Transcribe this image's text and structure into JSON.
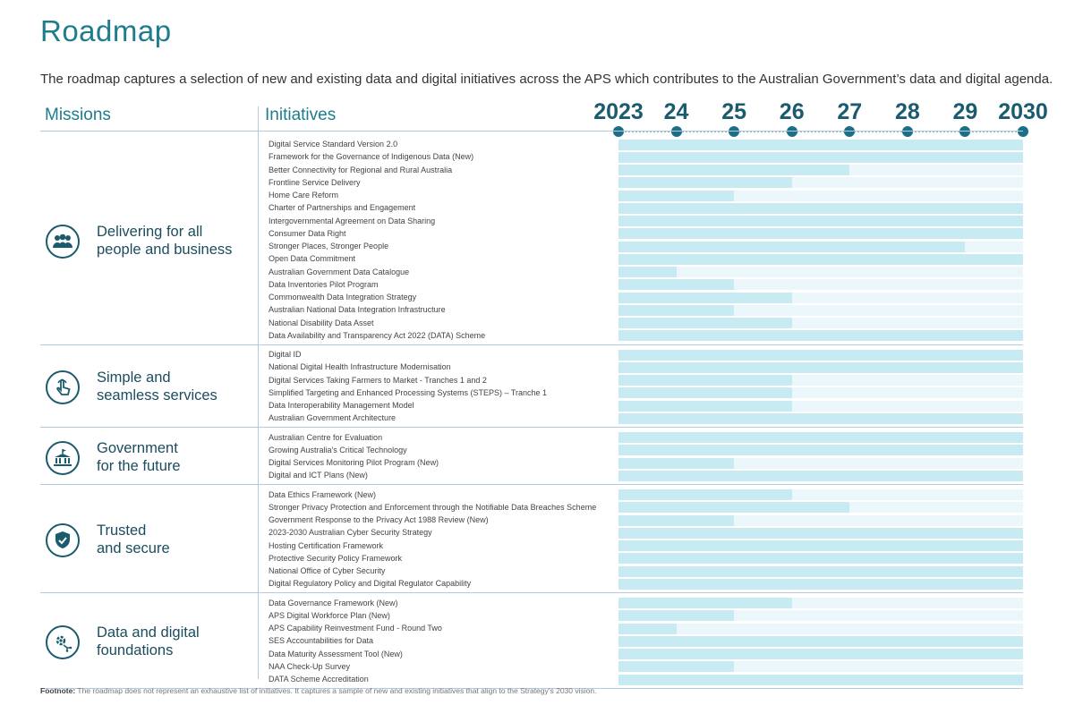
{
  "title": "Roadmap",
  "intro": "The roadmap captures a selection of new and existing data and digital initiatives across the APS which contributes to the Australian Government’s data and digital agenda.",
  "headers": {
    "missions": "Missions",
    "initiatives": "Initiatives"
  },
  "footnote": {
    "label": "Footnote:",
    "text": "The roadmap does not represent an exhaustive list of initiatives. It captures a sample of new and existing initiatives that align to the Strategy’s 2030 vision."
  },
  "colors": {
    "accent": "#1e7c8c",
    "dark": "#1b5b6e",
    "bar": "#c7eaf3",
    "track": "#ebf7fb"
  },
  "chart_data": {
    "type": "bar",
    "orientation": "horizontal-timeline",
    "title": "Roadmap",
    "x_axis": {
      "start": 2023,
      "end": 2030,
      "tick_values": [
        2023,
        2024,
        2025,
        2026,
        2027,
        2028,
        2029,
        2030
      ],
      "tick_labels": [
        "2023",
        "24",
        "25",
        "26",
        "27",
        "28",
        "29",
        "2030"
      ]
    },
    "groups": [
      {
        "mission": [
          "Delivering for all",
          "people and business"
        ],
        "icon": "people-group-icon",
        "initiatives": [
          {
            "label": "Digital Service Standard Version 2.0",
            "end": 2030
          },
          {
            "label": "Framework for the Governance of Indigenous Data (New)",
            "end": 2030
          },
          {
            "label": "Better Connectivity for Regional and Rural Australia",
            "end": 2027
          },
          {
            "label": "Frontline Service Delivery",
            "end": 2026
          },
          {
            "label": "Home Care Reform",
            "end": 2025
          },
          {
            "label": "Charter of Partnerships and Engagement",
            "end": 2030
          },
          {
            "label": "Intergovernmental Agreement on Data Sharing",
            "end": 2030
          },
          {
            "label": "Consumer Data Right",
            "end": 2030
          },
          {
            "label": "Stronger Places, Stronger People",
            "end": 2029
          },
          {
            "label": "Open Data Commitment",
            "end": 2030
          },
          {
            "label": "Australian Government Data Catalogue",
            "end": 2024
          },
          {
            "label": "Data Inventories Pilot Program",
            "end": 2025
          },
          {
            "label": "Commonwealth Data Integration Strategy",
            "end": 2026
          },
          {
            "label": "Australian National Data Integration Infrastructure",
            "end": 2025
          },
          {
            "label": "National Disability Data Asset",
            "end": 2026
          },
          {
            "label": "Data Availability and Transparency Act 2022 (DATA) Scheme",
            "end": 2030
          }
        ]
      },
      {
        "mission": [
          "Simple and",
          "seamless services"
        ],
        "icon": "touch-hand-icon",
        "initiatives": [
          {
            "label": "Digital ID",
            "end": 2030
          },
          {
            "label": "National Digital Health Infrastructure Modernisation",
            "end": 2030
          },
          {
            "label": "Digital Services Taking Farmers to Market - Tranches 1 and 2",
            "end": 2026
          },
          {
            "label": "Simplified Targeting and Enhanced Processing Systems (STEPS) – Tranche 1",
            "end": 2026
          },
          {
            "label": "Data Interoperability Management Model",
            "end": 2026
          },
          {
            "label": "Australian Government Architecture",
            "end": 2030
          }
        ]
      },
      {
        "mission": [
          "Government",
          "for the future"
        ],
        "icon": "government-building-icon",
        "initiatives": [
          {
            "label": "Australian Centre for Evaluation",
            "end": 2030
          },
          {
            "label": "Growing Australia's Critical Technology",
            "end": 2030
          },
          {
            "label": "Digital Services Monitoring Pilot Program (New)",
            "end": 2025
          },
          {
            "label": "Digital and ICT Plans (New)",
            "end": 2030
          }
        ]
      },
      {
        "mission": [
          "Trusted",
          "and secure"
        ],
        "icon": "shield-check-icon",
        "initiatives": [
          {
            "label": "Data Ethics Framework (New)",
            "end": 2026
          },
          {
            "label": "Stronger Privacy Protection and Enforcement through the Notifiable Data Breaches Scheme",
            "end": 2027
          },
          {
            "label": "Government Response to the Privacy Act 1988 Review (New)",
            "end": 2025
          },
          {
            "label": "2023-2030 Australian Cyber Security Strategy",
            "end": 2030
          },
          {
            "label": "Hosting Certification Framework",
            "end": 2030
          },
          {
            "label": "Protective Security Policy Framework",
            "end": 2030
          },
          {
            "label": "National Office of Cyber Security",
            "end": 2030
          },
          {
            "label": "Digital Regulatory Policy and Digital Regulator Capability",
            "end": 2030
          }
        ]
      },
      {
        "mission": [
          "Data and digital",
          "foundations"
        ],
        "icon": "gear-network-icon",
        "initiatives": [
          {
            "label": "Data Governance Framework (New)",
            "end": 2026
          },
          {
            "label": "APS Digital Workforce Plan (New)",
            "end": 2025
          },
          {
            "label": "APS Capability Reinvestment Fund - Round Two",
            "end": 2024
          },
          {
            "label": "SES Accountabilities for Data",
            "end": 2030
          },
          {
            "label": "Data Maturity Assessment Tool (New)",
            "end": 2030
          },
          {
            "label": "NAA Check-Up Survey",
            "end": 2025
          },
          {
            "label": "DATA Scheme Accreditation",
            "end": 2030
          }
        ]
      }
    ]
  }
}
